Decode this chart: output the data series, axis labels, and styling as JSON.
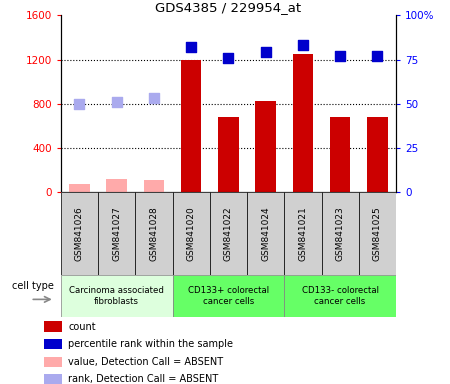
{
  "title": "GDS4385 / 229954_at",
  "samples": [
    "GSM841026",
    "GSM841027",
    "GSM841028",
    "GSM841020",
    "GSM841022",
    "GSM841024",
    "GSM841021",
    "GSM841023",
    "GSM841025"
  ],
  "count_values": [
    null,
    null,
    null,
    1200,
    680,
    820,
    1250,
    680,
    680
  ],
  "count_absent": [
    75,
    120,
    110,
    null,
    null,
    null,
    null,
    null,
    null
  ],
  "rank_values": [
    null,
    null,
    null,
    82,
    76,
    79,
    83,
    77,
    77
  ],
  "rank_absent": [
    50,
    51,
    53,
    null,
    null,
    null,
    null,
    null,
    null
  ],
  "ylim_left": [
    0,
    1600
  ],
  "ylim_right": [
    0,
    100
  ],
  "yticks_left": [
    0,
    400,
    800,
    1200,
    1600
  ],
  "ytick_labels_left": [
    "0",
    "400",
    "800",
    "1200",
    "1600"
  ],
  "yticks_right": [
    0,
    25,
    50,
    75,
    100
  ],
  "ytick_labels_right": [
    "0",
    "25",
    "50",
    "75",
    "100%"
  ],
  "cell_groups": [
    {
      "label": "Carcinoma associated\nfibroblasts",
      "start": 0,
      "end": 3,
      "color": "#ddffdd"
    },
    {
      "label": "CD133+ colorectal\ncancer cells",
      "start": 3,
      "end": 6,
      "color": "#66ff66"
    },
    {
      "label": "CD133- colorectal\ncancer cells",
      "start": 6,
      "end": 9,
      "color": "#66ff66"
    }
  ],
  "bar_color": "#cc0000",
  "bar_absent_color": "#ffaaaa",
  "dot_color": "#0000cc",
  "dot_absent_color": "#aaaaee",
  "legend_items": [
    {
      "color": "#cc0000",
      "label": "count"
    },
    {
      "color": "#0000cc",
      "label": "percentile rank within the sample"
    },
    {
      "color": "#ffaaaa",
      "label": "value, Detection Call = ABSENT"
    },
    {
      "color": "#aaaaee",
      "label": "rank, Detection Call = ABSENT"
    }
  ],
  "bar_width": 0.55,
  "dot_size": 45,
  "sample_box_color": "#cccccc",
  "fig_bg": "#ffffff"
}
